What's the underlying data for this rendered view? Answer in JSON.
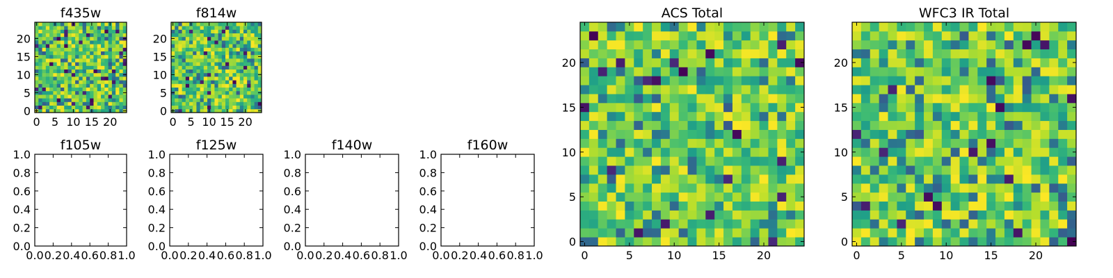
{
  "figure": {
    "background": "#ffffff",
    "colormap": "viridis"
  },
  "chart_data": [
    {
      "id": "f435w",
      "type": "heatmap",
      "title": "f435w",
      "grid_size": 25,
      "seed": 435,
      "xlim": [
        -0.5,
        24.5
      ],
      "ylim": [
        -0.5,
        24.5
      ],
      "origin": "lower",
      "xticks": [
        "0",
        "5",
        "10",
        "15",
        "20"
      ],
      "yticks": [
        "0",
        "5",
        "10",
        "15",
        "20"
      ]
    },
    {
      "id": "f814w",
      "type": "heatmap",
      "title": "f814w",
      "grid_size": 25,
      "seed": 814,
      "xlim": [
        -0.5,
        24.5
      ],
      "ylim": [
        -0.5,
        24.5
      ],
      "origin": "lower",
      "xticks": [
        "0",
        "5",
        "10",
        "15",
        "20"
      ],
      "yticks": [
        "0",
        "5",
        "10",
        "15",
        "20"
      ]
    },
    {
      "id": "f105w",
      "type": "heatmap",
      "title": "f105w",
      "empty": true,
      "xlim": [
        0,
        1
      ],
      "ylim": [
        0,
        1
      ],
      "xticks": [
        "0.0",
        "0.2",
        "0.4",
        "0.6",
        "0.8",
        "1.0"
      ],
      "yticks": [
        "0.0",
        "0.2",
        "0.4",
        "0.6",
        "0.8",
        "1.0"
      ]
    },
    {
      "id": "f125w",
      "type": "heatmap",
      "title": "f125w",
      "empty": true,
      "xlim": [
        0,
        1
      ],
      "ylim": [
        0,
        1
      ],
      "xticks": [
        "0.0",
        "0.2",
        "0.4",
        "0.6",
        "0.8",
        "1.0"
      ],
      "yticks": [
        "0.0",
        "0.2",
        "0.4",
        "0.6",
        "0.8",
        "1.0"
      ]
    },
    {
      "id": "f140w",
      "type": "heatmap",
      "title": "f140w",
      "empty": true,
      "xlim": [
        0,
        1
      ],
      "ylim": [
        0,
        1
      ],
      "xticks": [
        "0.0",
        "0.2",
        "0.4",
        "0.6",
        "0.8",
        "1.0"
      ],
      "yticks": [
        "0.0",
        "0.2",
        "0.4",
        "0.6",
        "0.8",
        "1.0"
      ]
    },
    {
      "id": "f160w",
      "type": "heatmap",
      "title": "f160w",
      "empty": true,
      "xlim": [
        0,
        1
      ],
      "ylim": [
        0,
        1
      ],
      "xticks": [
        "0.0",
        "0.2",
        "0.4",
        "0.6",
        "0.8",
        "1.0"
      ],
      "yticks": [
        "0.0",
        "0.2",
        "0.4",
        "0.6",
        "0.8",
        "1.0"
      ]
    },
    {
      "id": "acs-total",
      "type": "heatmap",
      "title": "ACS Total",
      "grid_size": 25,
      "seed": 1001,
      "xlim": [
        -0.5,
        24.5
      ],
      "ylim": [
        -0.5,
        24.5
      ],
      "origin": "lower",
      "xticks": [
        "0",
        "5",
        "10",
        "15",
        "20"
      ],
      "yticks": [
        "0",
        "5",
        "10",
        "15",
        "20"
      ]
    },
    {
      "id": "wfc3-ir-total",
      "type": "heatmap",
      "title": "WFC3 IR Total",
      "grid_size": 25,
      "seed": 2002,
      "xlim": [
        -0.5,
        24.5
      ],
      "ylim": [
        -0.5,
        24.5
      ],
      "origin": "lower",
      "xticks": [
        "0",
        "5",
        "10",
        "15",
        "20"
      ],
      "yticks": [
        "0",
        "5",
        "10",
        "15",
        "20"
      ]
    }
  ]
}
